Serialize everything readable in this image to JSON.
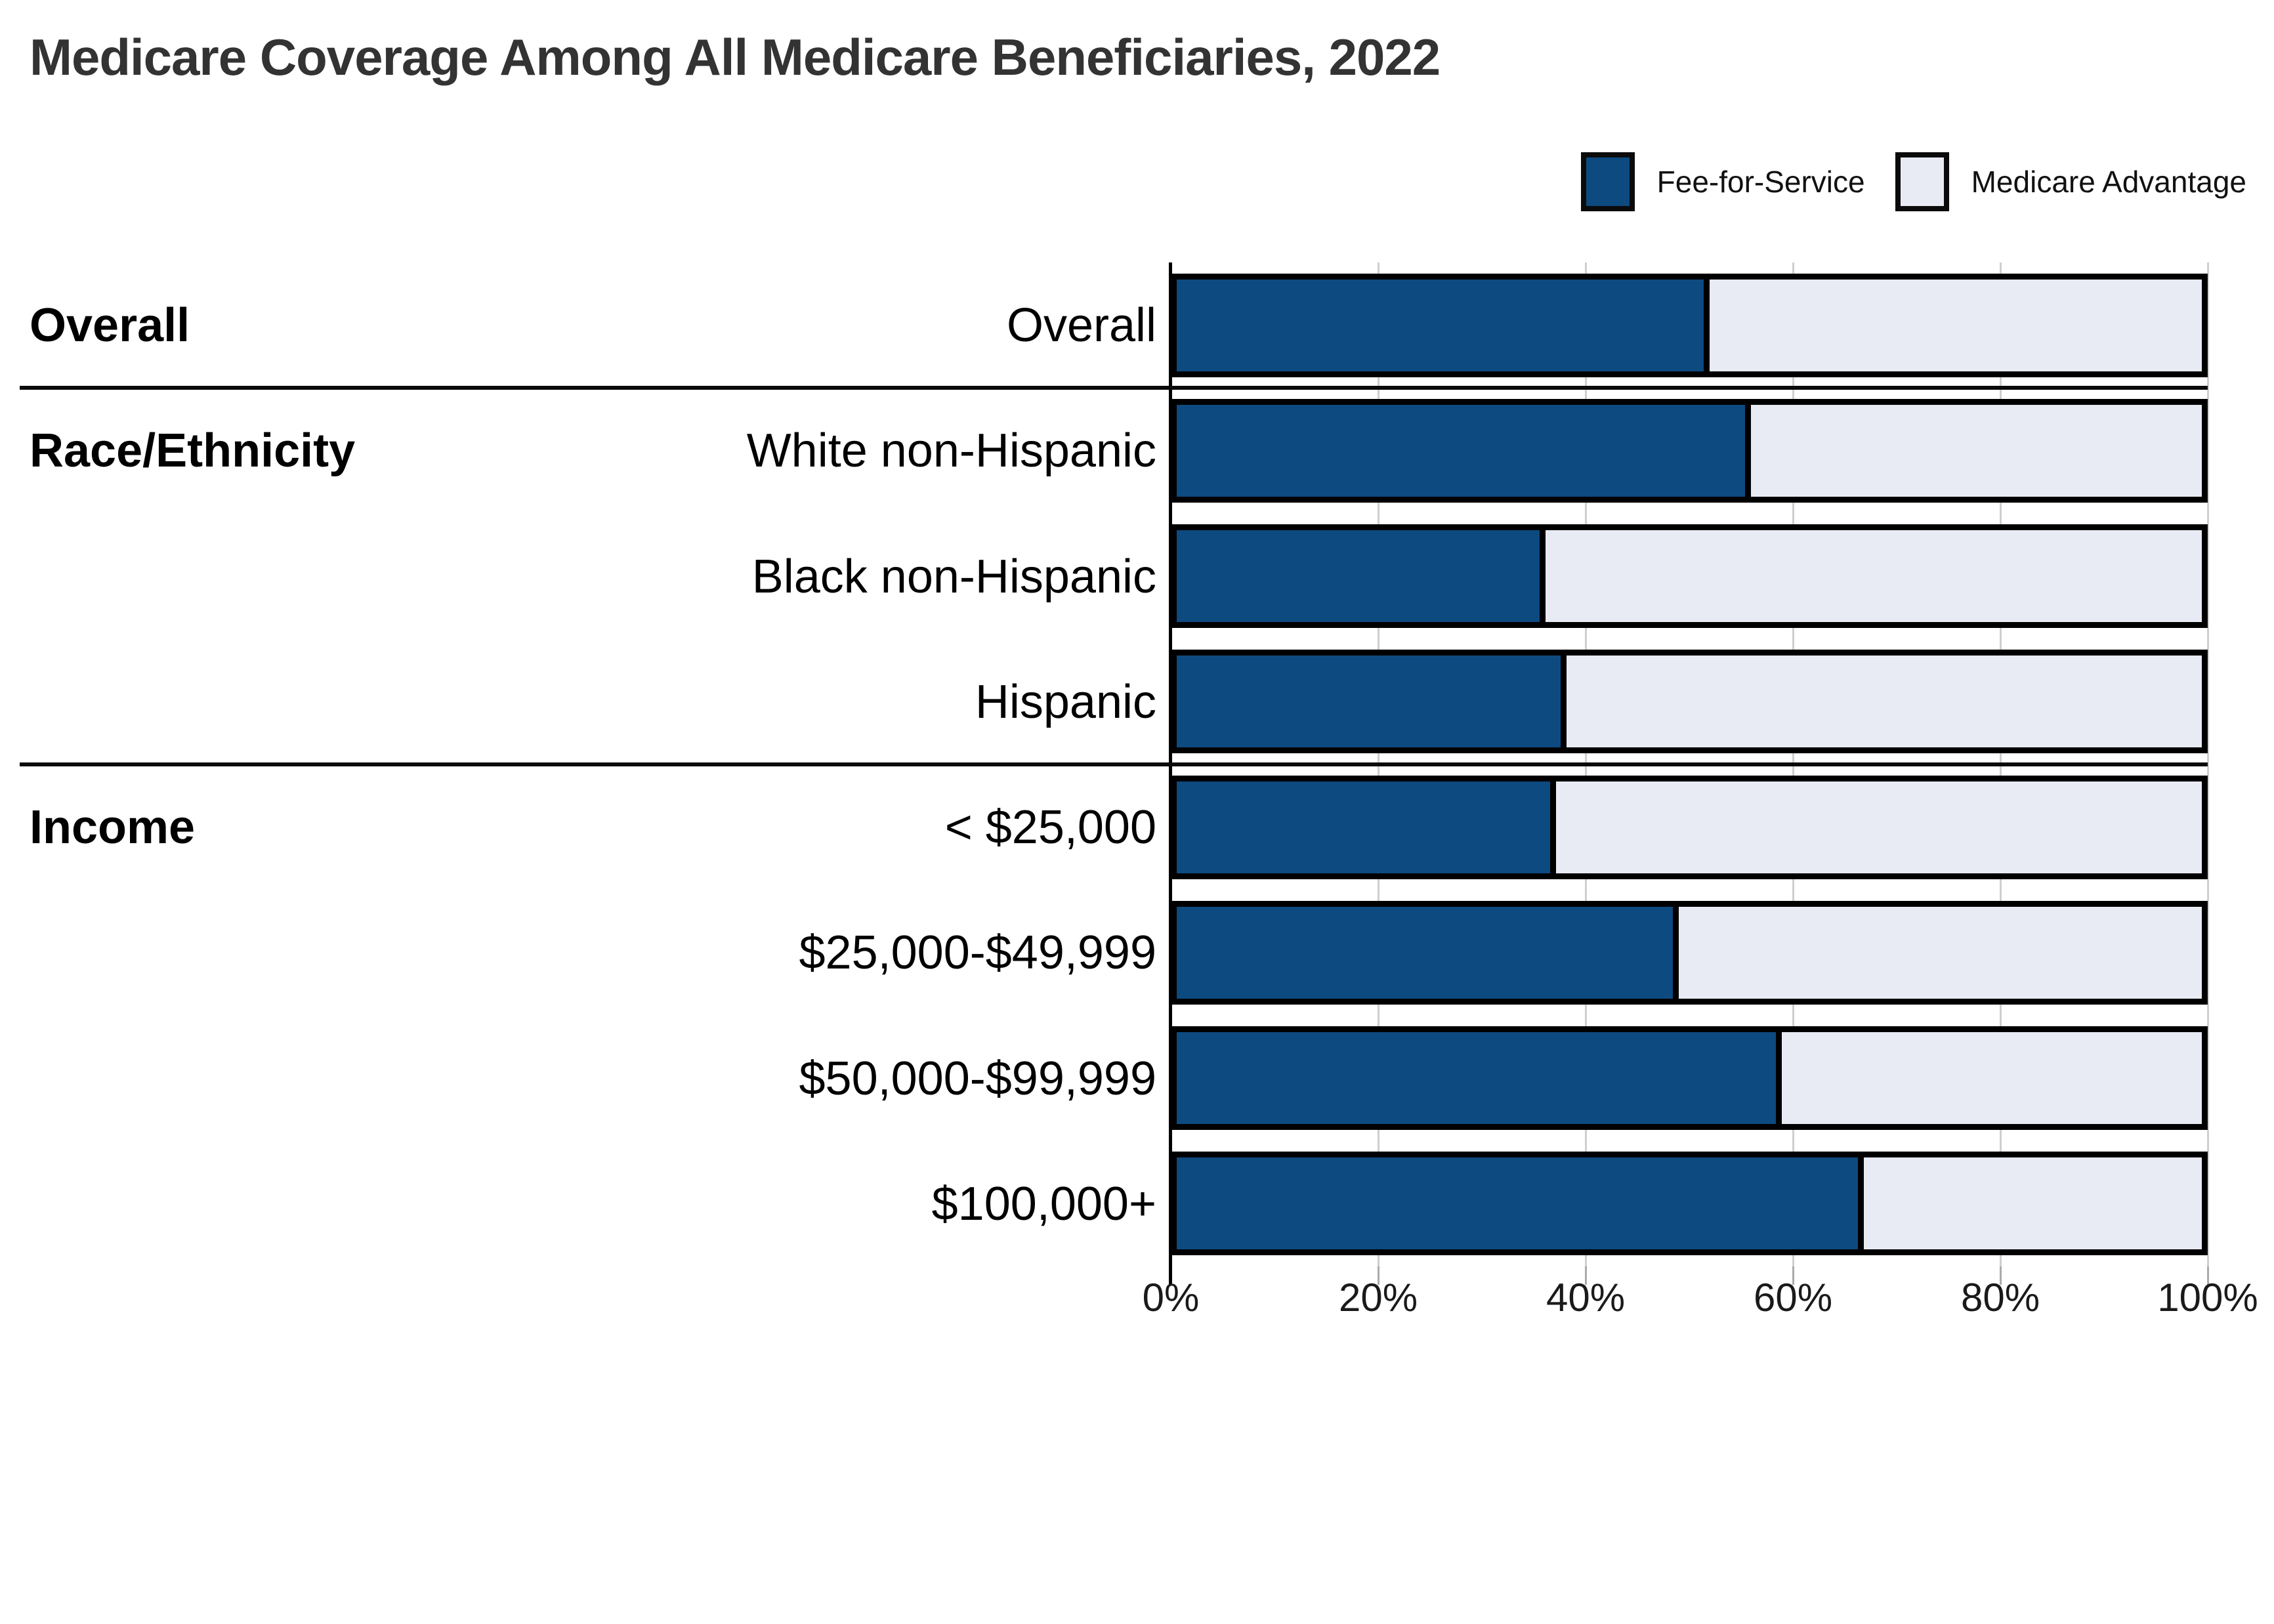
{
  "title": "Medicare Coverage Among All Medicare Beneficiaries, 2022",
  "legend": {
    "items": [
      {
        "label": "Fee-for-Service",
        "color": "#0d4a80"
      },
      {
        "label": "Medicare Advantage",
        "color": "#e8ebf4"
      }
    ]
  },
  "colors": {
    "fee_for_service": "#0d4a80",
    "medicare_advantage": "#e8ebf4",
    "bar_border": "#000000",
    "gridline": "#cfcfcf",
    "axis": "#000000",
    "title_text": "#333333",
    "label_text": "#000000"
  },
  "chart_data": {
    "type": "bar",
    "orientation": "horizontal",
    "stacked": true,
    "title": "Medicare Coverage Among All Medicare Beneficiaries, 2022",
    "xlabel": "",
    "ylabel": "",
    "xlim": [
      0,
      100
    ],
    "x_ticks": [
      "0%",
      "20%",
      "40%",
      "60%",
      "80%",
      "100%"
    ],
    "grid": true,
    "legend_position": "top-right",
    "categories": [
      "Overall",
      "White non-Hispanic",
      "Black non-Hispanic",
      "Hispanic",
      "< $25,000",
      "$25,000-$49,999",
      "$50,000-$99,999",
      "$100,000+"
    ],
    "series": [
      {
        "name": "Fee-for-Service",
        "color": "#0d4a80",
        "values": [
          52,
          56,
          36,
          38,
          37,
          49,
          59,
          67
        ]
      },
      {
        "name": "Medicare Advantage",
        "color": "#e8ebf4",
        "values": [
          48,
          44,
          64,
          62,
          63,
          51,
          41,
          33
        ]
      }
    ],
    "groups": [
      {
        "label": "Overall",
        "rows": [
          {
            "category": "Overall",
            "fee_for_service": 52,
            "medicare_advantage": 48
          }
        ]
      },
      {
        "label": "Race/Ethnicity",
        "rows": [
          {
            "category": "White non-Hispanic",
            "fee_for_service": 56,
            "medicare_advantage": 44
          },
          {
            "category": "Black non-Hispanic",
            "fee_for_service": 36,
            "medicare_advantage": 64
          },
          {
            "category": "Hispanic",
            "fee_for_service": 38,
            "medicare_advantage": 62
          }
        ]
      },
      {
        "label": "Income",
        "rows": [
          {
            "category": "< $25,000",
            "fee_for_service": 37,
            "medicare_advantage": 63
          },
          {
            "category": "$25,000-$49,999",
            "fee_for_service": 49,
            "medicare_advantage": 51
          },
          {
            "category": "$50,000-$99,999",
            "fee_for_service": 59,
            "medicare_advantage": 41
          },
          {
            "category": "$100,000+",
            "fee_for_service": 67,
            "medicare_advantage": 33
          }
        ]
      }
    ]
  }
}
